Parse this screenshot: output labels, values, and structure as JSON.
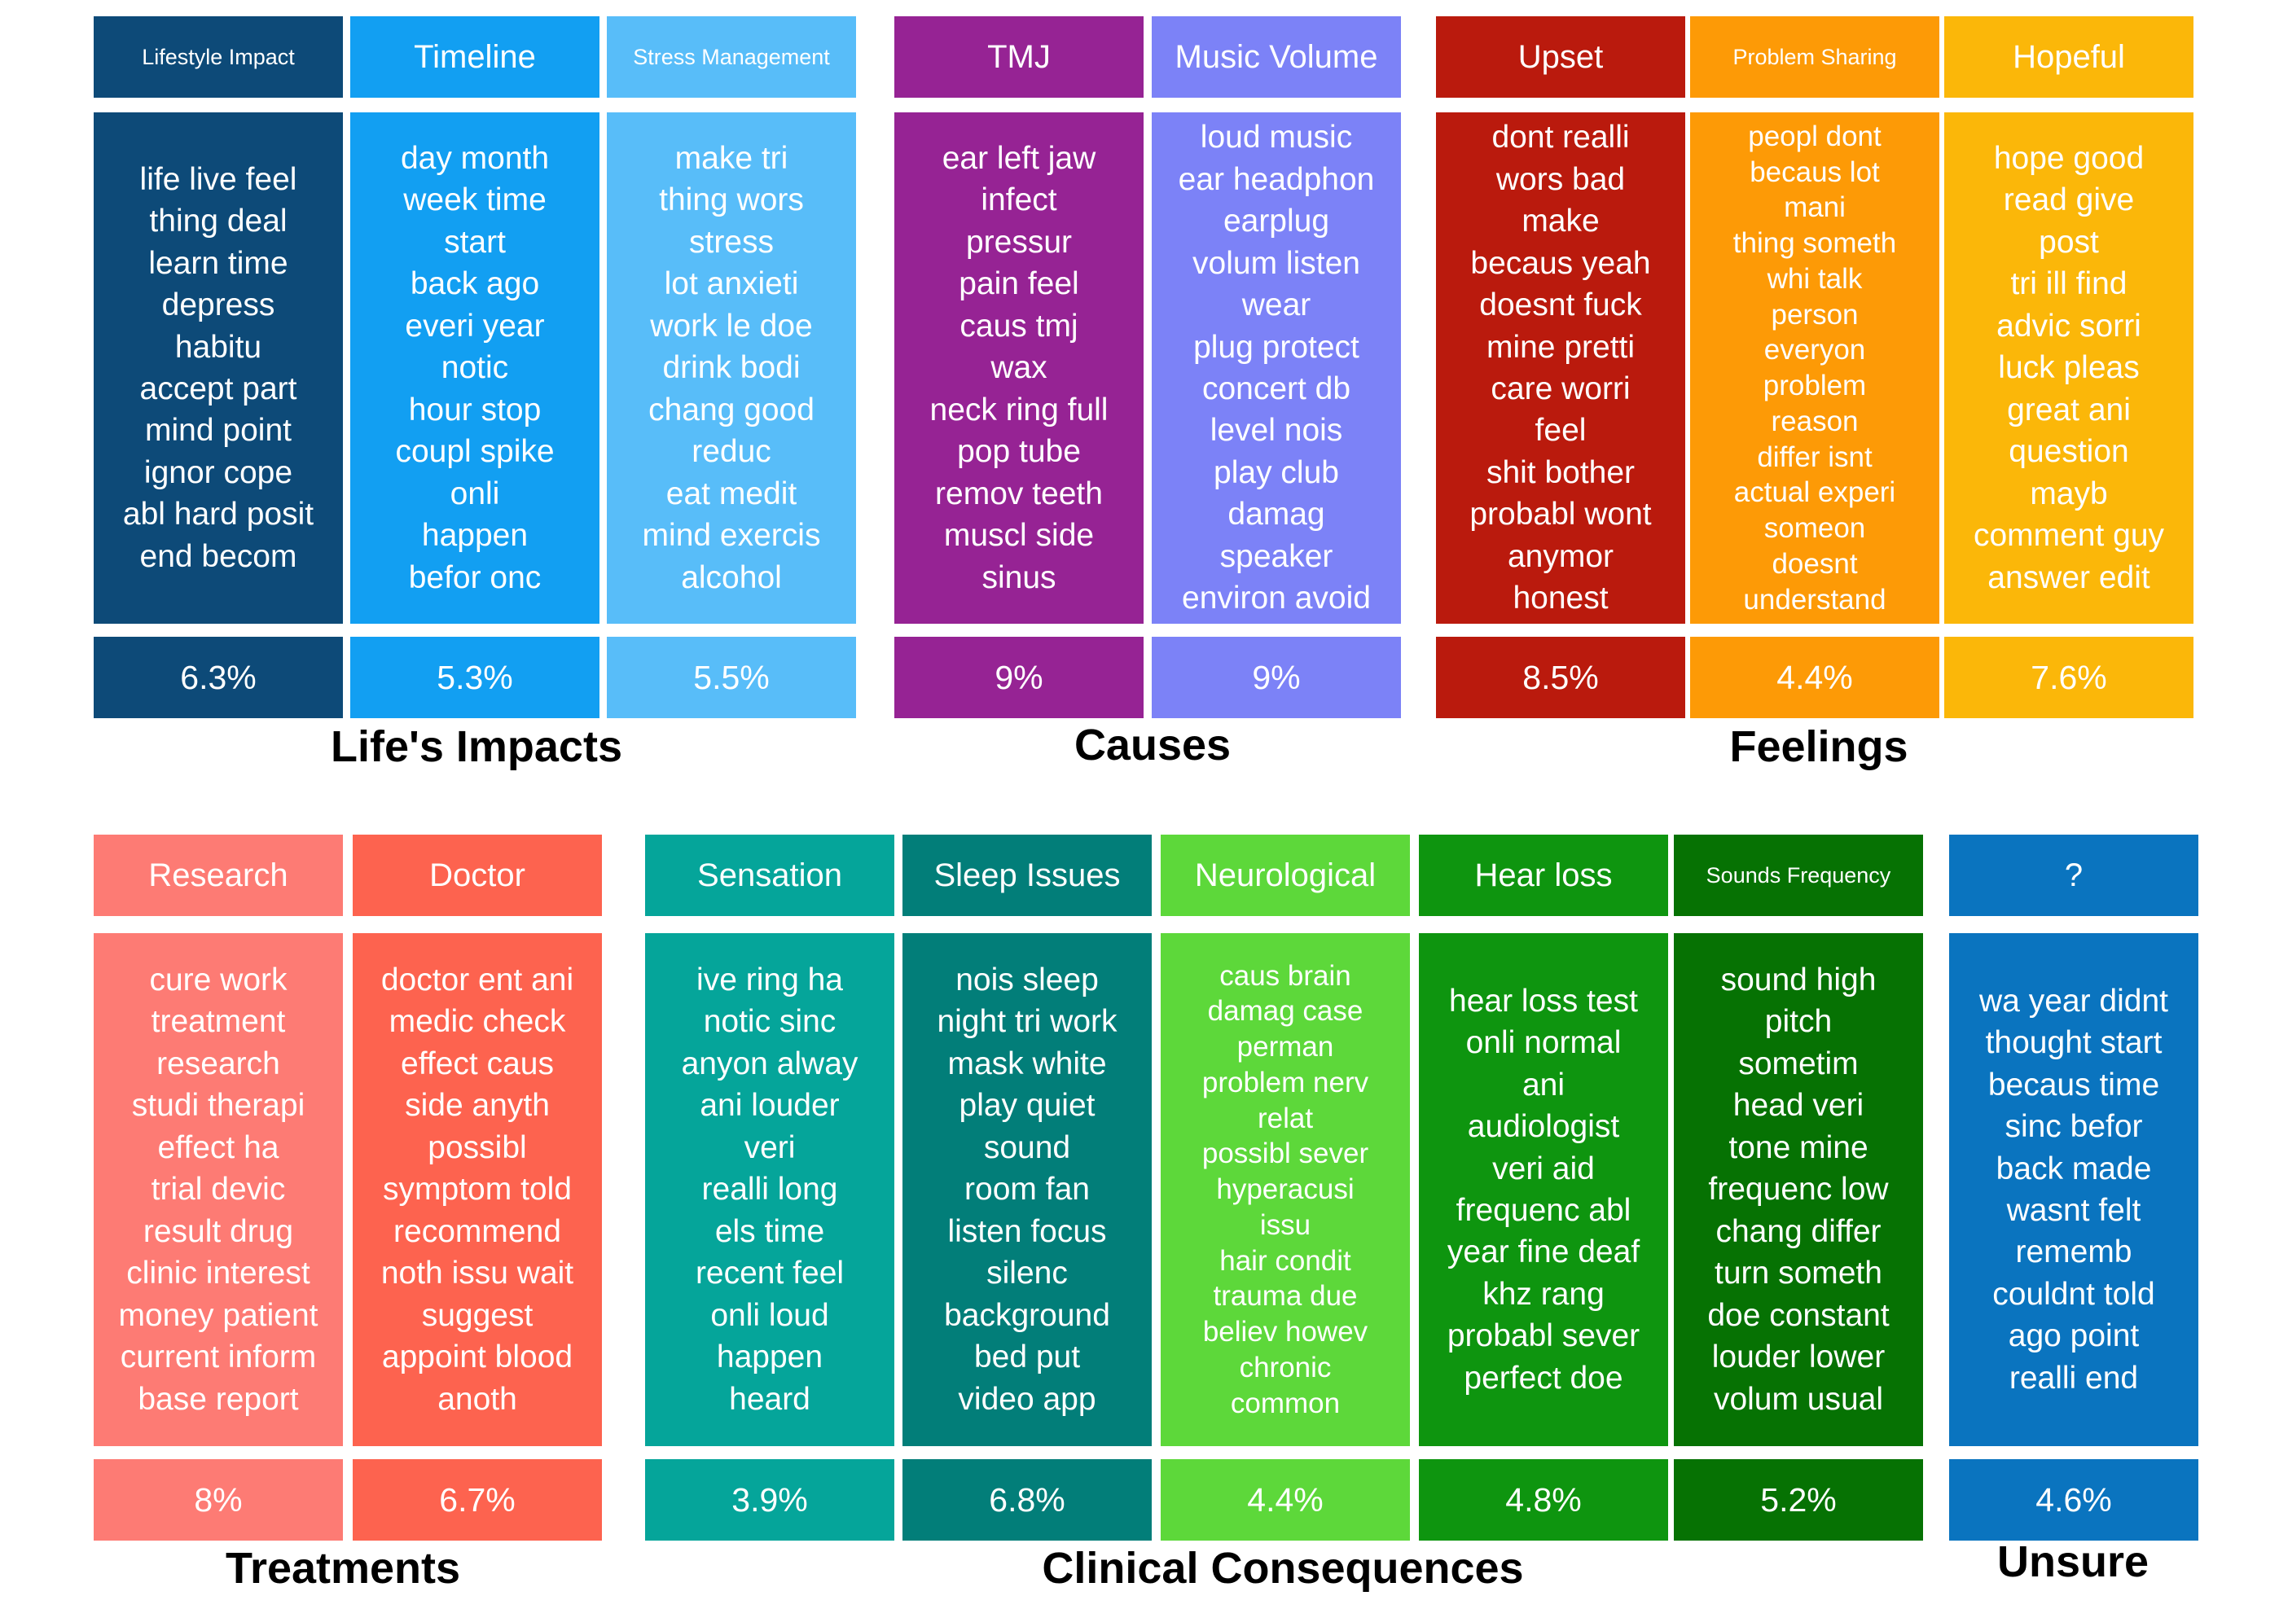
{
  "groups": [
    {
      "label": "Life's Impacts",
      "topics": [
        {
          "header": "Lifestyle Impact",
          "color": "#0d4a78",
          "keywords": [
            "life live feel",
            "thing deal",
            "learn time",
            "depress",
            "habitu",
            "accept part",
            "mind point",
            "ignor cope",
            "abl hard posit",
            "end becom"
          ],
          "percent": "6.3%"
        },
        {
          "header": "Timeline",
          "color": "#129ff2",
          "keywords": [
            "day month",
            "week time",
            "start",
            "back ago",
            "everi year",
            "notic",
            "hour stop",
            "coupl spike",
            "onli",
            "happen",
            "befor onc"
          ],
          "percent": "5.3%"
        },
        {
          "header": "Stress Management",
          "color": "#58bdf9",
          "keywords": [
            "make tri",
            "thing wors",
            "stress",
            "lot anxieti",
            "work le doe",
            "drink bodi",
            "chang good",
            "reduc",
            "eat medit",
            "mind exercis",
            "alcohol"
          ],
          "percent": "5.5%"
        }
      ]
    },
    {
      "label": "Causes",
      "topics": [
        {
          "header": "TMJ",
          "color": "#962394",
          "keywords": [
            "ear left jaw",
            "infect",
            "pressur",
            "pain feel",
            "caus tmj",
            "wax",
            "neck ring full",
            "pop tube",
            "remov teeth",
            "muscl side",
            "sinus"
          ],
          "percent": "9%"
        },
        {
          "header": "Music Volume",
          "color": "#7c82f7",
          "keywords": [
            "loud music",
            "ear headphon",
            "earplug",
            "volum listen",
            "wear",
            "plug protect",
            "concert db",
            "level nois",
            "play club",
            "damag",
            "speaker",
            "environ avoid"
          ],
          "percent": "9%"
        }
      ]
    },
    {
      "label": "Feelings",
      "topics": [
        {
          "header": "Upset",
          "color": "#ba1a0d",
          "keywords": [
            "dont realli",
            "wors bad",
            "make",
            "becaus yeah",
            "doesnt fuck",
            "mine pretti",
            "care worri",
            "feel",
            "shit bother",
            "probabl wont",
            "anymor",
            "honest"
          ],
          "percent": "8.5%"
        },
        {
          "header": "Problem Sharing",
          "color": "#fd9a06",
          "keywords": [
            "peopl dont",
            "becaus lot",
            "mani",
            "thing someth",
            "whi talk",
            "person",
            "everyon",
            "problem",
            "reason",
            "differ isnt",
            "actual experi",
            "someon",
            "doesnt",
            "understand"
          ],
          "percent": "4.4%"
        },
        {
          "header": "Hopeful",
          "color": "#fbb709",
          "keywords": [
            "hope good",
            "read give",
            "post",
            "tri ill find",
            "advic sorri",
            "luck pleas",
            "great ani",
            "question",
            "mayb",
            "comment guy",
            "answer edit"
          ],
          "percent": "7.6%"
        }
      ]
    },
    {
      "label": "Treatments",
      "topics": [
        {
          "header": "Research",
          "color": "#fd7b74",
          "keywords": [
            "cure work",
            "treatment",
            "research",
            "studi therapi",
            "effect ha",
            "trial devic",
            "result drug",
            "clinic interest",
            "money patient",
            "current inform",
            "base report"
          ],
          "percent": "8%"
        },
        {
          "header": "Doctor",
          "color": "#fd634f",
          "keywords": [
            "doctor ent ani",
            "medic check",
            "effect caus",
            "side anyth",
            "possibl",
            "symptom told",
            "recommend",
            "noth issu wait",
            "suggest",
            "appoint blood",
            "anoth"
          ],
          "percent": "6.7%"
        }
      ]
    },
    {
      "label": "Clinical Consequences",
      "topics": [
        {
          "header": "Sensation",
          "color": "#05a59a",
          "keywords": [
            "ive ring ha",
            "notic sinc",
            "anyon alway",
            "ani louder",
            "veri",
            "realli long",
            "els time",
            "recent feel",
            "onli loud",
            "happen",
            "heard"
          ],
          "percent": "3.9%"
        },
        {
          "header": "Sleep Issues",
          "color": "#027e79",
          "keywords": [
            "nois sleep",
            "night tri work",
            "mask white",
            "play quiet",
            "sound",
            "room fan",
            "listen focus",
            "silenc",
            "background",
            "bed put",
            "video app"
          ],
          "percent": "6.8%"
        },
        {
          "header": "Neurological",
          "color": "#5dd83a",
          "keywords": [
            "caus brain",
            "damag case",
            "perman",
            "problem nerv",
            "relat",
            "possibl sever",
            "hyperacusi",
            "issu",
            "hair condit",
            "trauma due",
            "believ howev",
            "chronic",
            "common"
          ],
          "percent": "4.4%"
        },
        {
          "header": "Hear loss",
          "color": "#0e950f",
          "keywords": [
            "hear loss test",
            "onli normal",
            "ani",
            "audiologist",
            "veri aid",
            "frequenc abl",
            "year fine deaf",
            "khz rang",
            "probabl sever",
            "perfect doe"
          ],
          "percent": "4.8%"
        },
        {
          "header": "Sounds Frequency",
          "color": "#067203",
          "keywords": [
            "sound high",
            "pitch",
            "sometim",
            "head veri",
            "tone mine",
            "frequenc low",
            "chang differ",
            "turn someth",
            "doe constant",
            "louder lower",
            "volum usual"
          ],
          "percent": "5.2%"
        }
      ]
    },
    {
      "label": "Unsure",
      "topics": [
        {
          "header": "?",
          "color": "#0a74bf",
          "keywords": [
            "wa year didnt",
            "thought start",
            "becaus time",
            "sinc befor",
            "back made",
            "wasnt felt",
            "rememb",
            "couldnt told",
            "ago point",
            "realli end"
          ],
          "percent": "4.6%"
        }
      ]
    }
  ]
}
